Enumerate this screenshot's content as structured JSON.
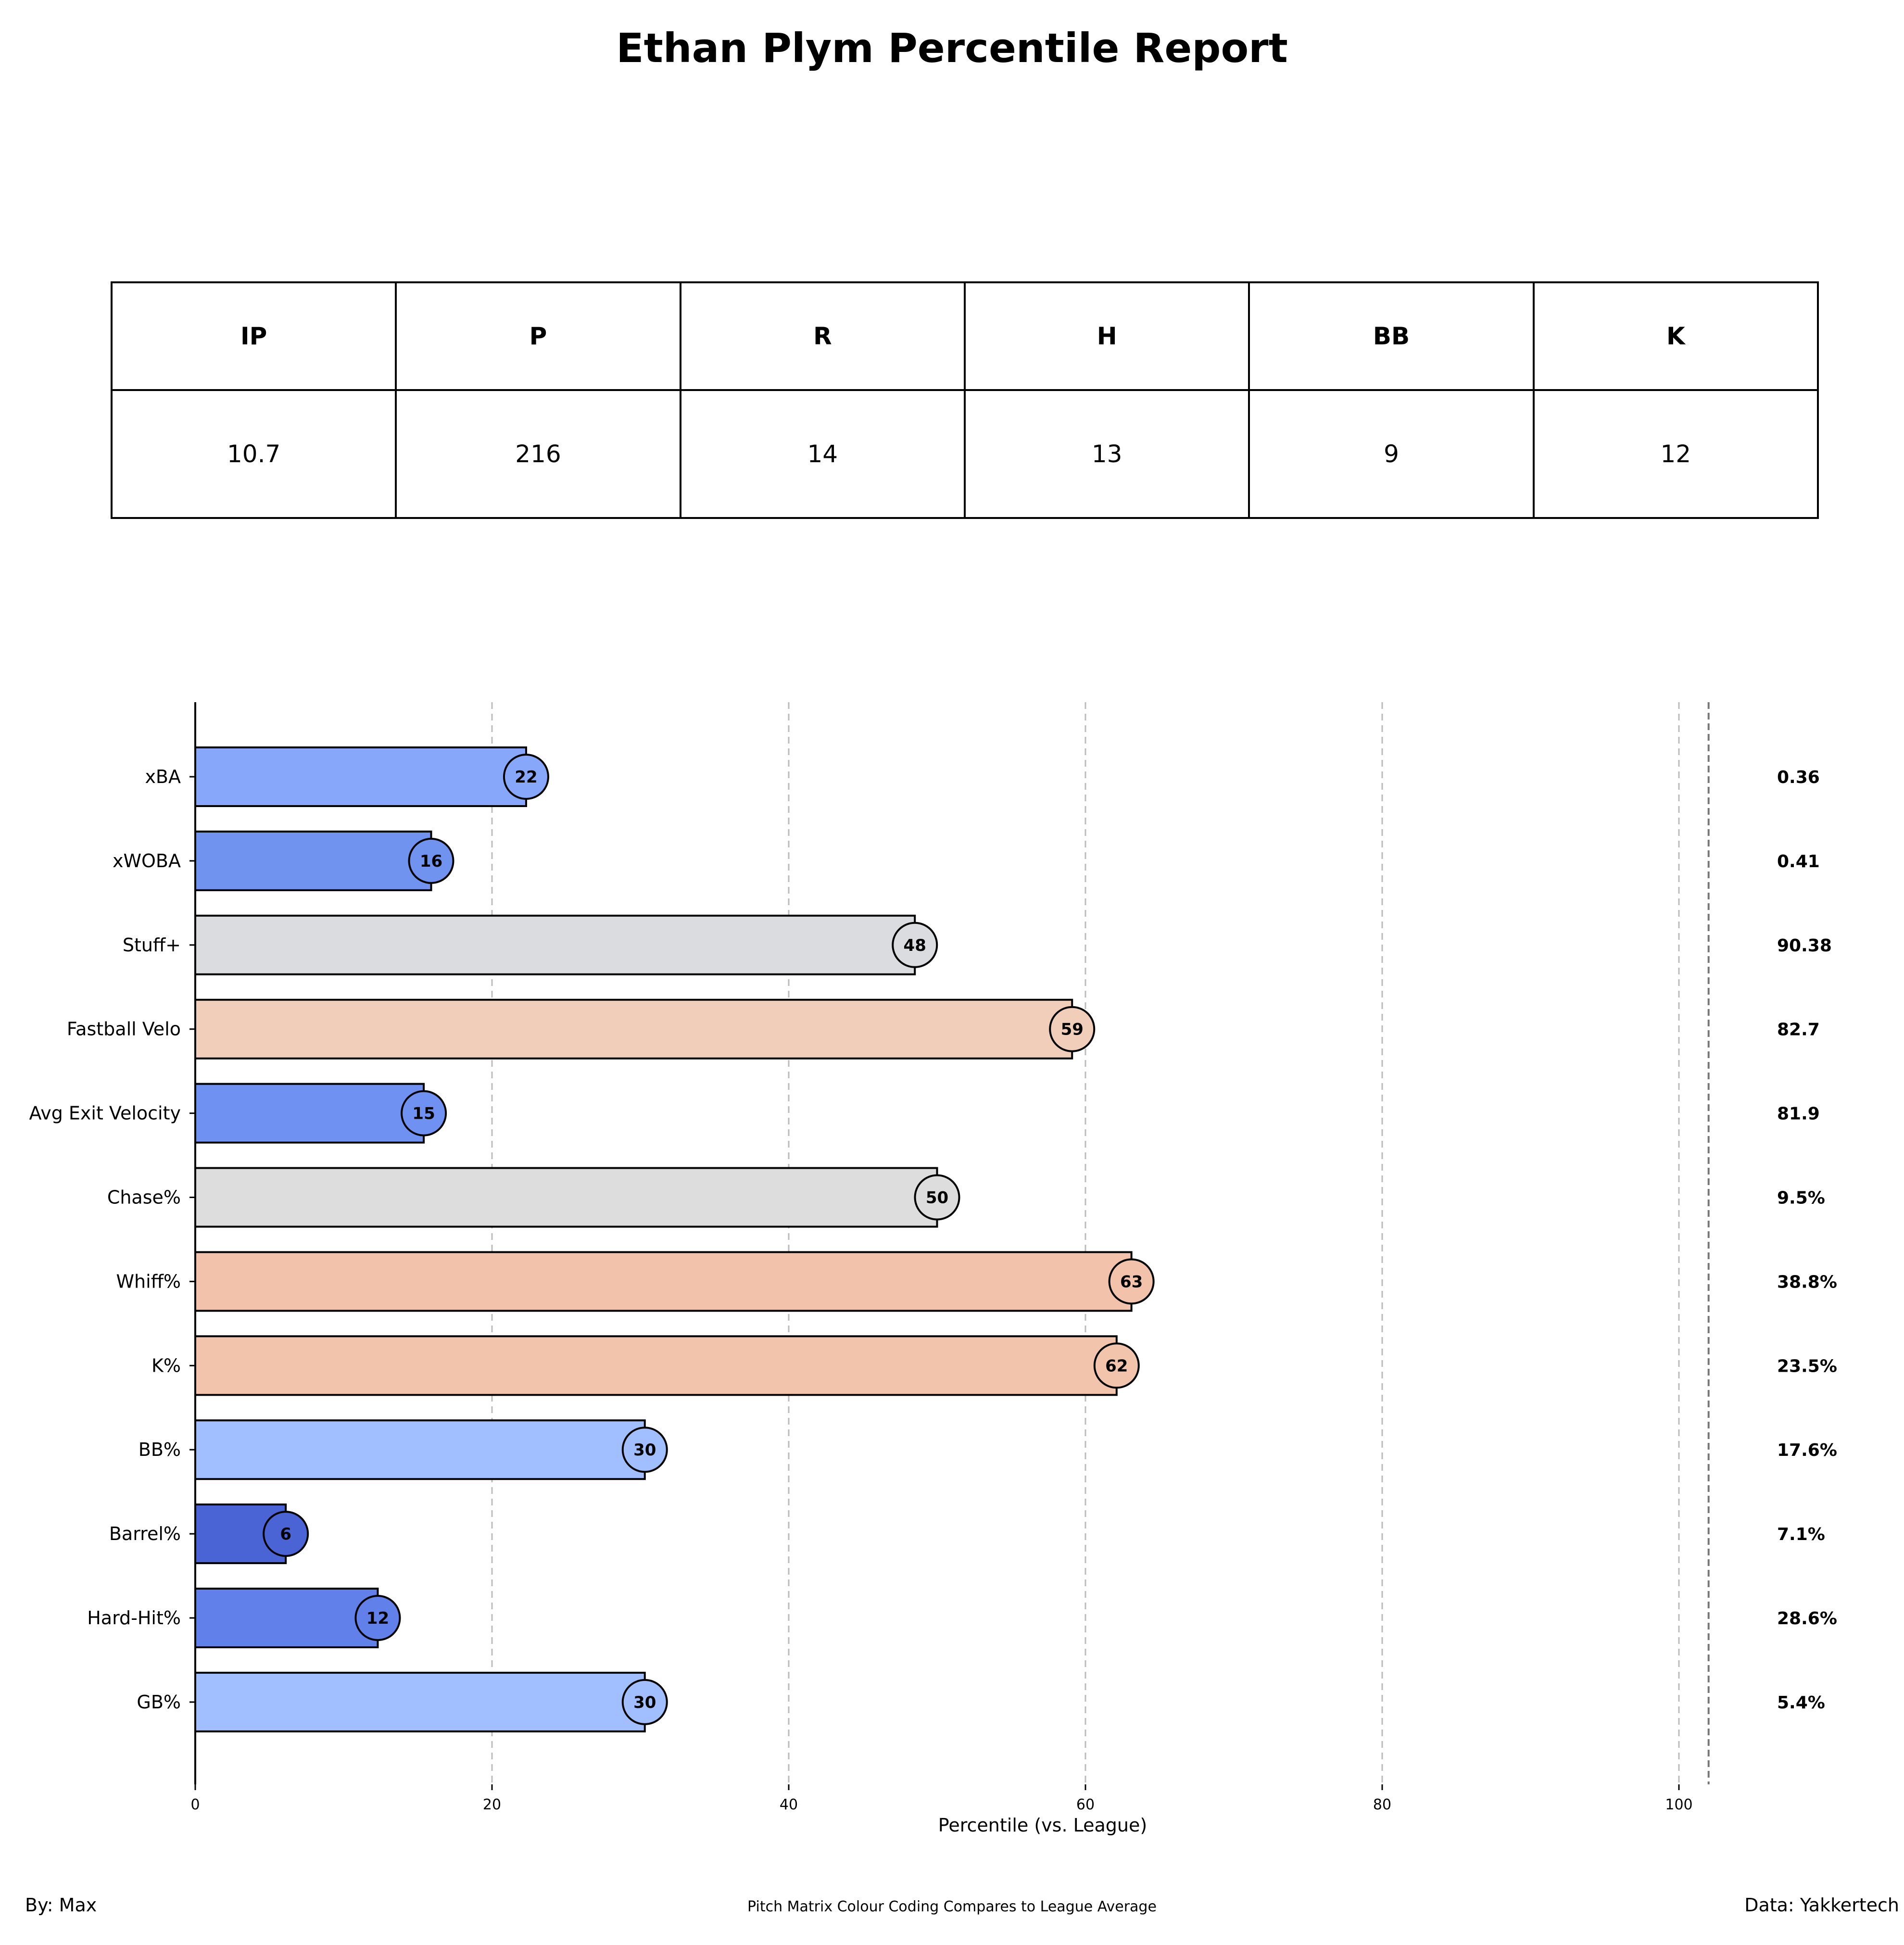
{
  "title": "Ethan Plym Percentile Report",
  "stats_table": {
    "headers": [
      "IP",
      "P",
      "R",
      "H",
      "BB",
      "K"
    ],
    "values": [
      "10.7",
      "216",
      "14",
      "13",
      "9",
      "12"
    ]
  },
  "chart_data": {
    "type": "bar",
    "orientation": "horizontal",
    "categories": [
      "xBA",
      "xWOBA",
      "Stuff+",
      "Fastball Velo",
      "Avg Exit Velocity",
      "Chase%",
      "Whiff%",
      "K%",
      "BB%",
      "Barrel%",
      "Hard-Hit%",
      "GB%"
    ],
    "values": [
      22,
      16,
      48,
      59,
      15,
      50,
      63,
      62,
      30,
      6,
      12,
      30
    ],
    "bar_lengths": [
      22.3,
      15.9,
      48.5,
      59.1,
      15.4,
      50.0,
      63.1,
      62.1,
      30.3,
      6.1,
      12.3,
      30.3
    ],
    "raw_values": [
      "0.36",
      "0.41",
      "90.38",
      "82.7",
      "81.9",
      "9.5%",
      "38.8%",
      "23.5%",
      "17.6%",
      "7.1%",
      "28.6%",
      "5.4%"
    ],
    "colors": [
      "#86a7fa",
      "#7093f0",
      "#dadce0",
      "#f1ceb9",
      "#6f92f2",
      "#dddddd",
      "#f2c3aa",
      "#f2c4ac",
      "#a1bffe",
      "#4b64d5",
      "#6180e9",
      "#a1bffe"
    ],
    "xlabel": "Percentile (vs. League)",
    "ylabel": "",
    "xlim": [
      0,
      110
    ],
    "xticks": [
      0,
      20,
      40,
      60,
      80,
      100
    ],
    "grid": "vertical dashed",
    "reference_line": 102
  },
  "footer": {
    "left": "By: Max",
    "center": "Pitch Matrix Colour Coding Compares to League Average",
    "right": "Data: Yakkertech"
  }
}
